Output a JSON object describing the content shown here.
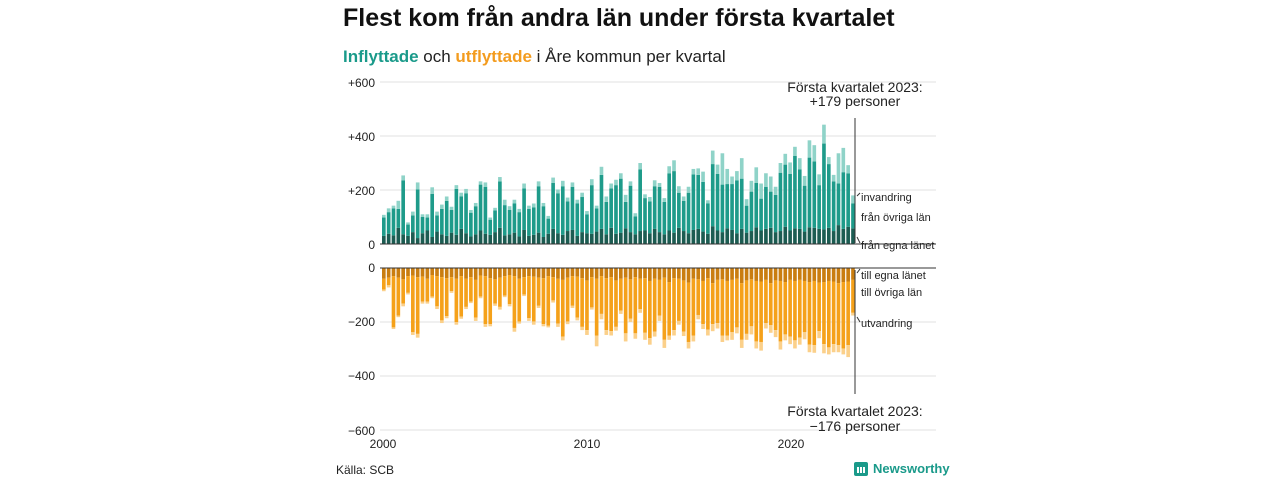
{
  "title": "Flest kom från andra län under första kvartalet",
  "subtitle": {
    "in_word": "Inflyttade",
    "mid": " och ",
    "out_word": "utflyttade",
    "rest": " i Åre kommun per kvartal"
  },
  "source": "Källa: SCB",
  "brand": {
    "name": "Newsworthy",
    "icon": "newsworthy-logo-icon"
  },
  "colors": {
    "in_own": "#1c5c52",
    "in_other": "#1e9b8a",
    "in_emig": "#8fd3c8",
    "out_own": "#c97d10",
    "out_other": "#f5a11a",
    "out_emig": "#fbd08a"
  },
  "chart_data": [
    {
      "type": "bar",
      "stacked": true,
      "title": "Inflyttade",
      "y_ticks": [
        "+600",
        "+400",
        "+200",
        "0"
      ],
      "ylim": [
        0,
        600
      ],
      "x_start": "2000 Q1",
      "x_ticks": [
        "2000",
        "2010",
        "2020"
      ],
      "series": [
        {
          "name": "från egna länet",
          "values": [
            30,
            38,
            32,
            60,
            36,
            30,
            44,
            22,
            40,
            50,
            26,
            46,
            36,
            30,
            42,
            34,
            56,
            40,
            28,
            36,
            50,
            38,
            34,
            44,
            60,
            32,
            36,
            42,
            28,
            52,
            30,
            34,
            42,
            26,
            38,
            56,
            40,
            34,
            48,
            52,
            30,
            44,
            40,
            38,
            46,
            56,
            36,
            60,
            38,
            42,
            58,
            44,
            36,
            48,
            50,
            40,
            56,
            44,
            36,
            50,
            42,
            60,
            48,
            40,
            52,
            56,
            46,
            38,
            66,
            50,
            44,
            58,
            52,
            40,
            56,
            42,
            48,
            62,
            50,
            56,
            60,
            44,
            48,
            64,
            50,
            58,
            56,
            46,
            62,
            60,
            56,
            54,
            60,
            48,
            70,
            56,
            64,
            58
          ]
        },
        {
          "name": "från övriga län",
          "values": [
            68,
            80,
            100,
            70,
            200,
            42,
            62,
            180,
            60,
            48,
            160,
            60,
            94,
            130,
            84,
            170,
            120,
            148,
            88,
            104,
            170,
            174,
            56,
            80,
            172,
            112,
            90,
            108,
            90,
            154,
            100,
            102,
            172,
            114,
            56,
            170,
            148,
            180,
            110,
            160,
            120,
            130,
            70,
            180,
            86,
            200,
            120,
            146,
            180,
            200,
            98,
            172,
            66,
            228,
            120,
            118,
            158,
            168,
            120,
            212,
            228,
            130,
            112,
            150,
            206,
            200,
            184,
            112,
            230,
            210,
            176,
            164,
            170,
            196,
            186,
            100,
            146,
            164,
            118,
            156,
            134,
            138,
            216,
            230,
            210,
            268,
            220,
            170,
            258,
            246,
            162,
            318,
            236,
            184,
            154,
            210,
            198,
            92
          ]
        },
        {
          "name": "invandring",
          "values": [
            10,
            14,
            10,
            30,
            18,
            8,
            14,
            26,
            10,
            12,
            24,
            14,
            16,
            16,
            12,
            14,
            14,
            16,
            10,
            12,
            12,
            16,
            8,
            10,
            16,
            20,
            14,
            14,
            12,
            18,
            12,
            14,
            18,
            12,
            10,
            20,
            14,
            20,
            14,
            16,
            14,
            16,
            12,
            22,
            10,
            30,
            20,
            18,
            20,
            20,
            26,
            16,
            12,
            24,
            14,
            16,
            22,
            14,
            14,
            26,
            40,
            24,
            16,
            22,
            20,
            24,
            38,
            12,
            50,
            34,
            116,
            56,
            28,
            34,
            76,
            24,
            40,
            58,
            56,
            50,
            56,
            30,
            36,
            40,
            42,
            34,
            42,
            36,
            64,
            60,
            40,
            70,
            26,
            24,
            112,
            90,
            30,
            30
          ]
        }
      ]
    },
    {
      "type": "bar",
      "stacked": true,
      "title": "Utflyttade",
      "y_ticks": [
        "0",
        "−200",
        "−400",
        "−600"
      ],
      "ylim": [
        -600,
        0
      ],
      "x_start": "2000 Q1",
      "x_ticks": [
        "2000",
        "2010",
        "2020"
      ],
      "series": [
        {
          "name": "till egna länet",
          "values": [
            -40,
            -36,
            -30,
            -36,
            -42,
            -30,
            -28,
            -34,
            -32,
            -40,
            -26,
            -30,
            -34,
            -38,
            -34,
            -40,
            -30,
            -40,
            -34,
            -44,
            -28,
            -30,
            -38,
            -42,
            -36,
            -30,
            -26,
            -30,
            -40,
            -34,
            -30,
            -32,
            -36,
            -38,
            -30,
            -34,
            -40,
            -44,
            -36,
            -30,
            -32,
            -38,
            -46,
            -34,
            -40,
            -30,
            -38,
            -34,
            -46,
            -40,
            -36,
            -42,
            -34,
            -40,
            -38,
            -48,
            -40,
            -44,
            -36,
            -52,
            -38,
            -40,
            -46,
            -54,
            -40,
            -42,
            -48,
            -38,
            -56,
            -44,
            -42,
            -48,
            -44,
            -40,
            -56,
            -46,
            -42,
            -48,
            -50,
            -44,
            -56,
            -46,
            -48,
            -52,
            -44,
            -48,
            -44,
            -48,
            -52,
            -48,
            -54,
            -52,
            -48,
            -50,
            -56,
            -52,
            -50,
            -44
          ]
        },
        {
          "name": "till övriga län",
          "values": [
            -40,
            -28,
            -190,
            -140,
            -90,
            -62,
            -210,
            -210,
            -92,
            -84,
            -80,
            -112,
            -160,
            -140,
            -52,
            -160,
            -150,
            -104,
            -90,
            -140,
            -78,
            -178,
            -170,
            -90,
            -108,
            -72,
            -108,
            -192,
            -158,
            -64,
            -156,
            -166,
            -104,
            -170,
            -184,
            -86,
            -166,
            -210,
            -162,
            -110,
            -152,
            -180,
            -184,
            -112,
            -210,
            -140,
            -192,
            -200,
            -172,
            -118,
            -206,
            -146,
            -208,
            -112,
            -202,
            -212,
            -196,
            -132,
            -230,
            -198,
            -192,
            -156,
            -190,
            -220,
            -210,
            -132,
            -160,
            -190,
            -152,
            -160,
            -208,
            -202,
            -194,
            -180,
            -210,
            -198,
            -174,
            -224,
            -224,
            -160,
            -156,
            -184,
            -224,
            -194,
            -210,
            -220,
            -214,
            -190,
            -232,
            -238,
            -180,
            -230,
            -246,
            -232,
            -230,
            -246,
            -236,
            -122
          ]
        },
        {
          "name": "utvandring",
          "values": [
            -6,
            -8,
            -6,
            -6,
            -10,
            -6,
            -10,
            -14,
            -8,
            -8,
            -6,
            -10,
            -10,
            -8,
            -6,
            -10,
            -8,
            -8,
            -6,
            -12,
            -6,
            -10,
            -8,
            -8,
            -10,
            -6,
            -8,
            -14,
            -8,
            -6,
            -10,
            -12,
            -8,
            -8,
            -6,
            -8,
            -12,
            -14,
            -10,
            -8,
            -10,
            -12,
            -18,
            -8,
            -40,
            -20,
            -18,
            -16,
            -14,
            -12,
            -30,
            -12,
            -20,
            -14,
            -26,
            -24,
            -18,
            -20,
            -30,
            -16,
            -20,
            -14,
            -16,
            -24,
            -22,
            -16,
            -18,
            -22,
            -26,
            -20,
            -24,
            -18,
            -28,
            -22,
            -30,
            -22,
            -30,
            -26,
            -32,
            -20,
            -28,
            -26,
            -30,
            -22,
            -28,
            -30,
            -26,
            -26,
            -28,
            -28,
            -26,
            -34,
            -26,
            -30,
            -26,
            -22,
            -44,
            -10
          ]
        }
      ]
    }
  ],
  "annotations": {
    "top": {
      "line1": "Första kvartalet 2023:",
      "line2": "+179 personer"
    },
    "bottom": {
      "line1": "Första kvartalet 2023:",
      "line2": "−176 personer"
    },
    "in_labels": [
      "invandring",
      "från övriga län",
      "från egna länet"
    ],
    "out_labels": [
      "till egna länet",
      "till övriga län",
      "utvandring"
    ]
  }
}
